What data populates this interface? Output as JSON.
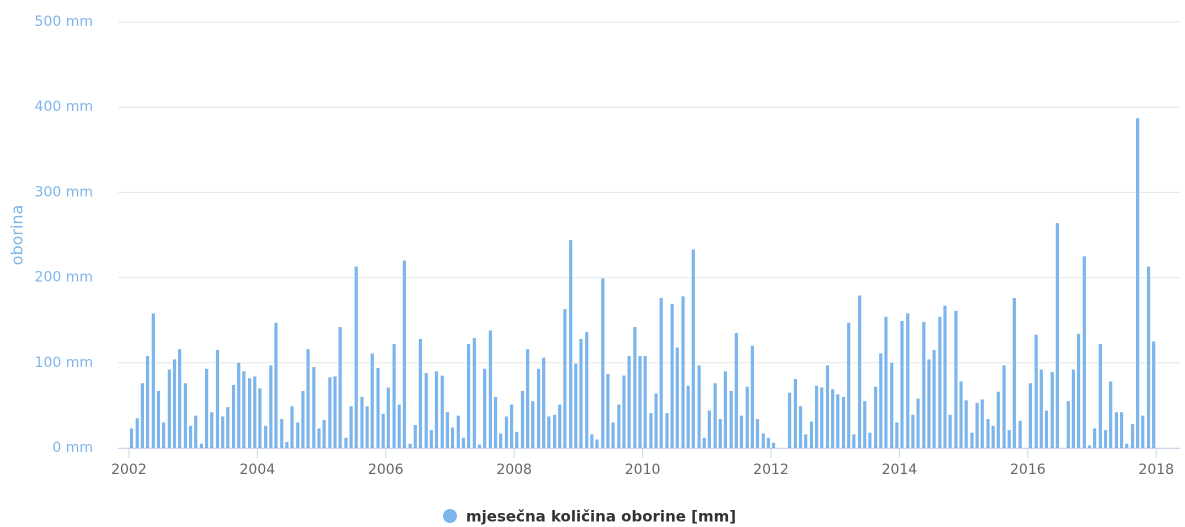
{
  "chart_data": {
    "type": "bar",
    "y_label": "oborina",
    "color": "#7cb5ec",
    "grid": true,
    "series": [
      {
        "name": "mjesečna količina oborine [mm]",
        "color": "#7cb5ec",
        "x": [
          2002.04,
          2002.13,
          2002.21,
          2002.29,
          2002.38,
          2002.46,
          2002.54,
          2002.63,
          2002.71,
          2002.79,
          2002.88,
          2002.96,
          2003.04,
          2003.13,
          2003.21,
          2003.29,
          2003.38,
          2003.46,
          2003.54,
          2003.63,
          2003.71,
          2003.79,
          2003.88,
          2003.96,
          2004.04,
          2004.13,
          2004.21,
          2004.29,
          2004.38,
          2004.46,
          2004.54,
          2004.63,
          2004.71,
          2004.79,
          2004.88,
          2004.96,
          2005.04,
          2005.13,
          2005.21,
          2005.29,
          2005.38,
          2005.46,
          2005.54,
          2005.63,
          2005.71,
          2005.79,
          2005.88,
          2005.96,
          2006.04,
          2006.13,
          2006.21,
          2006.29,
          2006.38,
          2006.46,
          2006.54,
          2006.63,
          2006.71,
          2006.79,
          2006.88,
          2006.96,
          2007.04,
          2007.13,
          2007.21,
          2007.29,
          2007.38,
          2007.46,
          2007.54,
          2007.63,
          2007.71,
          2007.79,
          2007.88,
          2007.96,
          2008.04,
          2008.13,
          2008.21,
          2008.29,
          2008.38,
          2008.46,
          2008.54,
          2008.63,
          2008.71,
          2008.79,
          2008.88,
          2008.96,
          2009.04,
          2009.13,
          2009.21,
          2009.29,
          2009.38,
          2009.46,
          2009.54,
          2009.63,
          2009.71,
          2009.79,
          2009.88,
          2009.96,
          2010.04,
          2010.13,
          2010.21,
          2010.29,
          2010.38,
          2010.46,
          2010.54,
          2010.63,
          2010.71,
          2010.79,
          2010.88,
          2010.96,
          2011.04,
          2011.13,
          2011.21,
          2011.29,
          2011.38,
          2011.46,
          2011.54,
          2011.63,
          2011.71,
          2011.79,
          2011.88,
          2011.96,
          2012.04,
          2012.29,
          2012.38,
          2012.46,
          2012.54,
          2012.63,
          2012.71,
          2012.79,
          2012.88,
          2012.96,
          2013.04,
          2013.13,
          2013.21,
          2013.29,
          2013.38,
          2013.46,
          2013.54,
          2013.63,
          2013.71,
          2013.79,
          2013.88,
          2013.96,
          2014.04,
          2014.13,
          2014.21,
          2014.29,
          2014.38,
          2014.46,
          2014.54,
          2014.63,
          2014.71,
          2014.79,
          2014.88,
          2014.96,
          2015.04,
          2015.13,
          2015.21,
          2015.29,
          2015.38,
          2015.46,
          2015.54,
          2015.63,
          2015.71,
          2015.79,
          2015.88,
          2016.04,
          2016.13,
          2016.21,
          2016.29,
          2016.38,
          2016.46,
          2016.63,
          2016.71,
          2016.79,
          2016.88,
          2016.96,
          2017.04,
          2017.13,
          2017.21,
          2017.29,
          2017.38,
          2017.46,
          2017.54,
          2017.63,
          2017.71,
          2017.79,
          2017.88,
          2017.96
        ],
        "values": [
          23,
          35,
          76,
          108,
          158,
          67,
          30,
          92,
          104,
          116,
          76,
          26,
          38,
          5,
          93,
          42,
          115,
          37,
          48,
          74,
          100,
          90,
          82,
          84,
          70,
          26,
          97,
          147,
          34,
          7,
          49,
          30,
          67,
          116,
          95,
          23,
          33,
          83,
          84,
          142,
          12,
          49,
          213,
          60,
          49,
          111,
          94,
          40,
          71,
          122,
          51,
          220,
          5,
          27,
          128,
          88,
          21,
          90,
          85,
          42,
          24,
          38,
          12,
          122,
          129,
          4,
          93,
          138,
          60,
          17,
          37,
          51,
          19,
          67,
          116,
          55,
          93,
          106,
          37,
          39,
          51,
          163,
          244,
          99,
          128,
          136,
          16,
          10,
          199,
          87,
          30,
          51,
          85,
          108,
          142,
          108,
          108,
          41,
          64,
          176,
          41,
          169,
          118,
          178,
          73,
          233,
          97,
          12,
          44,
          76,
          34,
          90,
          67,
          135,
          38,
          72,
          120,
          34,
          17,
          12,
          6,
          65,
          81,
          49,
          16,
          31,
          73,
          71,
          97,
          69,
          63,
          60,
          147,
          16,
          179,
          55,
          18,
          72,
          111,
          154,
          100,
          30,
          149,
          158,
          39,
          58,
          148,
          104,
          115,
          154,
          167,
          39,
          161,
          78,
          56,
          18,
          53,
          57,
          34,
          26,
          66,
          97,
          21,
          176,
          32,
          76,
          133,
          92,
          44,
          89,
          264,
          55,
          92,
          134,
          225,
          3,
          23,
          122,
          21,
          78,
          42,
          42,
          5,
          28,
          387,
          38,
          213,
          125
        ]
      }
    ],
    "xlim": [
      2001.83,
      2018.37
    ],
    "xticks": [
      2002,
      2004,
      2006,
      2008,
      2010,
      2012,
      2014,
      2016,
      2018
    ],
    "ylim": [
      0,
      500
    ],
    "yticks": [
      {
        "value": 0,
        "label": "0 mm"
      },
      {
        "value": 100,
        "label": "100 mm"
      },
      {
        "value": 200,
        "label": "200 mm"
      },
      {
        "value": 300,
        "label": "300 mm"
      },
      {
        "value": 400,
        "label": "400 mm"
      },
      {
        "value": 500,
        "label": "500 mm"
      }
    ],
    "legend": "bottom"
  }
}
